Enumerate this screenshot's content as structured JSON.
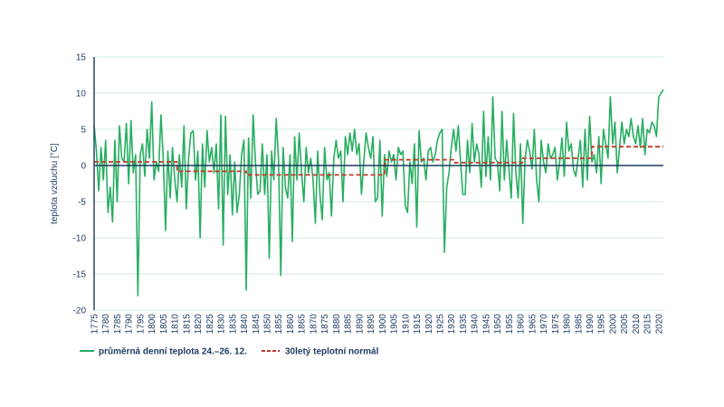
{
  "chart_data": {
    "type": "line",
    "ylabel": "teplota vzduchu [°C]",
    "xlabel": "",
    "ylim": [
      -20,
      15
    ],
    "yticks": [
      15,
      10,
      5,
      0,
      -5,
      -10,
      -15,
      -20
    ],
    "xlim": [
      1775,
      2022
    ],
    "xticks": [
      1775,
      1780,
      1785,
      1790,
      1795,
      1800,
      1805,
      1810,
      1815,
      1820,
      1825,
      1830,
      1835,
      1840,
      1845,
      1850,
      1855,
      1860,
      1865,
      1870,
      1875,
      1880,
      1885,
      1890,
      1895,
      1900,
      1905,
      1910,
      1915,
      1920,
      1925,
      1930,
      1935,
      1940,
      1945,
      1950,
      1955,
      1960,
      1965,
      1970,
      1975,
      1980,
      1985,
      1990,
      1995,
      2000,
      2005,
      2010,
      2015,
      2020
    ],
    "grid": true,
    "legend_position": "bottom",
    "colors": {
      "series1": "#27ae60",
      "series2": "#c0392b",
      "axis": "#1f3a5f",
      "grid": "#cfe8dc"
    },
    "series": [
      {
        "name": "průměrná denní teplota 24.–26. 12.",
        "style": "solid",
        "points": [
          [
            1775,
            5.5
          ],
          [
            1776,
            2.0
          ],
          [
            1777,
            -3.5
          ],
          [
            1778,
            2.5
          ],
          [
            1779,
            -2.0
          ],
          [
            1780,
            3.5
          ],
          [
            1781,
            -6.5
          ],
          [
            1782,
            -3.0
          ],
          [
            1783,
            -7.8
          ],
          [
            1784,
            3.5
          ],
          [
            1785,
            -5.0
          ],
          [
            1786,
            5.5
          ],
          [
            1787,
            1.0
          ],
          [
            1788,
            0.5
          ],
          [
            1789,
            5.8
          ],
          [
            1790,
            -2.5
          ],
          [
            1791,
            6.2
          ],
          [
            1792,
            -1.0
          ],
          [
            1793,
            1.5
          ],
          [
            1794,
            -18.0
          ],
          [
            1795,
            1.5
          ],
          [
            1796,
            3.0
          ],
          [
            1797,
            -1.5
          ],
          [
            1798,
            5.0
          ],
          [
            1799,
            1.0
          ],
          [
            1800,
            8.8
          ],
          [
            1801,
            -2.0
          ],
          [
            1802,
            0.5
          ],
          [
            1803,
            -0.8
          ],
          [
            1804,
            7.0
          ],
          [
            1805,
            1.0
          ],
          [
            1806,
            -9.0
          ],
          [
            1807,
            2.0
          ],
          [
            1808,
            -4.5
          ],
          [
            1809,
            2.5
          ],
          [
            1810,
            -2.0
          ],
          [
            1811,
            -5.0
          ],
          [
            1812,
            1.5
          ],
          [
            1813,
            -3.0
          ],
          [
            1814,
            5.5
          ],
          [
            1815,
            -6.0
          ],
          [
            1816,
            1.0
          ],
          [
            1817,
            4.5
          ],
          [
            1818,
            4.8
          ],
          [
            1819,
            -2.0
          ],
          [
            1820,
            2.0
          ],
          [
            1821,
            -10.0
          ],
          [
            1822,
            3.0
          ],
          [
            1823,
            -3.0
          ],
          [
            1824,
            4.8
          ],
          [
            1825,
            0.5
          ],
          [
            1826,
            2.5
          ],
          [
            1827,
            -1.0
          ],
          [
            1828,
            3.0
          ],
          [
            1829,
            -6.0
          ],
          [
            1830,
            7.0
          ],
          [
            1831,
            -11.0
          ],
          [
            1832,
            6.8
          ],
          [
            1833,
            -4.0
          ],
          [
            1834,
            1.5
          ],
          [
            1835,
            -6.8
          ],
          [
            1836,
            0.5
          ],
          [
            1837,
            -6.5
          ],
          [
            1838,
            -4.0
          ],
          [
            1839,
            1.5
          ],
          [
            1840,
            3.5
          ],
          [
            1841,
            -17.2
          ],
          [
            1842,
            3.8
          ],
          [
            1843,
            -4.5
          ],
          [
            1844,
            7.0
          ],
          [
            1845,
            0.5
          ],
          [
            1846,
            -4.0
          ],
          [
            1847,
            -3.5
          ],
          [
            1848,
            3.0
          ],
          [
            1849,
            -4.0
          ],
          [
            1850,
            1.5
          ],
          [
            1851,
            -12.8
          ],
          [
            1852,
            2.0
          ],
          [
            1853,
            -2.0
          ],
          [
            1854,
            6.5
          ],
          [
            1855,
            1.0
          ],
          [
            1856,
            -15.2
          ],
          [
            1857,
            2.5
          ],
          [
            1858,
            -3.0
          ],
          [
            1859,
            -4.5
          ],
          [
            1860,
            1.5
          ],
          [
            1861,
            -10.5
          ],
          [
            1862,
            4.0
          ],
          [
            1863,
            -2.0
          ],
          [
            1864,
            4.5
          ],
          [
            1865,
            -1.0
          ],
          [
            1866,
            -5.0
          ],
          [
            1867,
            2.5
          ],
          [
            1868,
            -1.0
          ],
          [
            1869,
            1.0
          ],
          [
            1870,
            -2.0
          ],
          [
            1871,
            -8.0
          ],
          [
            1872,
            2.0
          ],
          [
            1873,
            -4.0
          ],
          [
            1874,
            -7.5
          ],
          [
            1875,
            2.5
          ],
          [
            1876,
            -2.0
          ],
          [
            1877,
            -1.0
          ],
          [
            1878,
            -7.0
          ],
          [
            1879,
            1.0
          ],
          [
            1880,
            3.5
          ],
          [
            1881,
            1.0
          ],
          [
            1882,
            2.0
          ],
          [
            1883,
            -5.0
          ],
          [
            1884,
            4.0
          ],
          [
            1885,
            1.5
          ],
          [
            1886,
            4.5
          ],
          [
            1887,
            2.0
          ],
          [
            1888,
            5.0
          ],
          [
            1889,
            1.5
          ],
          [
            1890,
            3.0
          ],
          [
            1891,
            -4.0
          ],
          [
            1892,
            0.5
          ],
          [
            1893,
            4.5
          ],
          [
            1894,
            2.5
          ],
          [
            1895,
            1.0
          ],
          [
            1896,
            4.0
          ],
          [
            1897,
            -5.0
          ],
          [
            1898,
            -4.5
          ],
          [
            1899,
            3.5
          ],
          [
            1900,
            -7.0
          ],
          [
            1901,
            1.5
          ],
          [
            1902,
            -1.5
          ],
          [
            1903,
            2.0
          ],
          [
            1904,
            0.5
          ],
          [
            1905,
            1.5
          ],
          [
            1906,
            -2.0
          ],
          [
            1907,
            2.5
          ],
          [
            1908,
            1.5
          ],
          [
            1909,
            2.0
          ],
          [
            1910,
            -5.5
          ],
          [
            1911,
            -6.5
          ],
          [
            1912,
            0.5
          ],
          [
            1913,
            -2.5
          ],
          [
            1914,
            3.0
          ],
          [
            1915,
            -8.5
          ],
          [
            1916,
            4.8
          ],
          [
            1917,
            0.5
          ],
          [
            1918,
            1.0
          ],
          [
            1919,
            -2.0
          ],
          [
            1920,
            2.0
          ],
          [
            1921,
            2.5
          ],
          [
            1922,
            0.5
          ],
          [
            1923,
            1.5
          ],
          [
            1924,
            3.5
          ],
          [
            1925,
            4.5
          ],
          [
            1926,
            5.0
          ],
          [
            1927,
            -12.0
          ],
          [
            1928,
            -3.0
          ],
          [
            1929,
            -1.0
          ],
          [
            1930,
            2.5
          ],
          [
            1931,
            5.0
          ],
          [
            1932,
            2.0
          ],
          [
            1933,
            5.5
          ],
          [
            1934,
            0.5
          ],
          [
            1935,
            -4.0
          ],
          [
            1936,
            -4.0
          ],
          [
            1937,
            3.5
          ],
          [
            1938,
            -1.0
          ],
          [
            1939,
            5.8
          ],
          [
            1940,
            0.5
          ],
          [
            1941,
            3.0
          ],
          [
            1942,
            1.5
          ],
          [
            1943,
            -3.0
          ],
          [
            1944,
            7.5
          ],
          [
            1945,
            -1.5
          ],
          [
            1946,
            4.0
          ],
          [
            1947,
            -2.0
          ],
          [
            1948,
            9.5
          ],
          [
            1949,
            1.0
          ],
          [
            1950,
            0.5
          ],
          [
            1951,
            -3.5
          ],
          [
            1952,
            7.5
          ],
          [
            1953,
            -2.0
          ],
          [
            1954,
            3.5
          ],
          [
            1955,
            -0.5
          ],
          [
            1956,
            -4.5
          ],
          [
            1957,
            7.2
          ],
          [
            1958,
            -1.0
          ],
          [
            1959,
            -4.5
          ],
          [
            1960,
            3.0
          ],
          [
            1961,
            -8.0
          ],
          [
            1962,
            1.0
          ],
          [
            1963,
            3.5
          ],
          [
            1964,
            2.0
          ],
          [
            1965,
            -0.5
          ],
          [
            1966,
            5.0
          ],
          [
            1967,
            -2.0
          ],
          [
            1968,
            -5.0
          ],
          [
            1969,
            3.5
          ],
          [
            1970,
            0.5
          ],
          [
            1971,
            -1.0
          ],
          [
            1972,
            3.0
          ],
          [
            1973,
            1.0
          ],
          [
            1974,
            1.5
          ],
          [
            1975,
            2.5
          ],
          [
            1976,
            -2.0
          ],
          [
            1977,
            0.5
          ],
          [
            1978,
            3.8
          ],
          [
            1979,
            -1.5
          ],
          [
            1980,
            6.0
          ],
          [
            1981,
            2.0
          ],
          [
            1982,
            3.0
          ],
          [
            1983,
            -0.5
          ],
          [
            1984,
            -1.5
          ],
          [
            1985,
            1.0
          ],
          [
            1986,
            3.5
          ],
          [
            1987,
            -3.0
          ],
          [
            1988,
            5.0
          ],
          [
            1989,
            -2.0
          ],
          [
            1990,
            6.8
          ],
          [
            1991,
            0.5
          ],
          [
            1992,
            1.5
          ],
          [
            1993,
            -1.0
          ],
          [
            1994,
            4.0
          ],
          [
            1995,
            -2.5
          ],
          [
            1996,
            5.0
          ],
          [
            1997,
            3.0
          ],
          [
            1998,
            1.0
          ],
          [
            1999,
            9.5
          ],
          [
            2000,
            3.0
          ],
          [
            2001,
            6.0
          ],
          [
            2002,
            -1.0
          ],
          [
            2003,
            2.5
          ],
          [
            2004,
            6.0
          ],
          [
            2005,
            3.0
          ],
          [
            2006,
            5.0
          ],
          [
            2007,
            4.0
          ],
          [
            2008,
            6.5
          ],
          [
            2009,
            4.0
          ],
          [
            2010,
            3.0
          ],
          [
            2011,
            5.5
          ],
          [
            2012,
            2.5
          ],
          [
            2013,
            6.5
          ],
          [
            2014,
            1.5
          ],
          [
            2015,
            5.0
          ],
          [
            2016,
            4.5
          ],
          [
            2017,
            6.0
          ],
          [
            2018,
            5.5
          ],
          [
            2019,
            4.0
          ],
          [
            2020,
            9.5
          ],
          [
            2021,
            10.0
          ],
          [
            2022,
            10.5
          ]
        ]
      },
      {
        "name": "30letý teplotní normál",
        "style": "dashed",
        "points": [
          [
            1775,
            0.5
          ],
          [
            1811,
            0.5
          ],
          [
            1811,
            -0.8
          ],
          [
            1841,
            -0.8
          ],
          [
            1841,
            -1.3
          ],
          [
            1901,
            -1.3
          ],
          [
            1901,
            0.8
          ],
          [
            1931,
            0.8
          ],
          [
            1931,
            0.4
          ],
          [
            1961,
            0.4
          ],
          [
            1961,
            1.0
          ],
          [
            1991,
            1.0
          ],
          [
            1991,
            2.6
          ],
          [
            2022,
            2.6
          ]
        ]
      }
    ]
  }
}
